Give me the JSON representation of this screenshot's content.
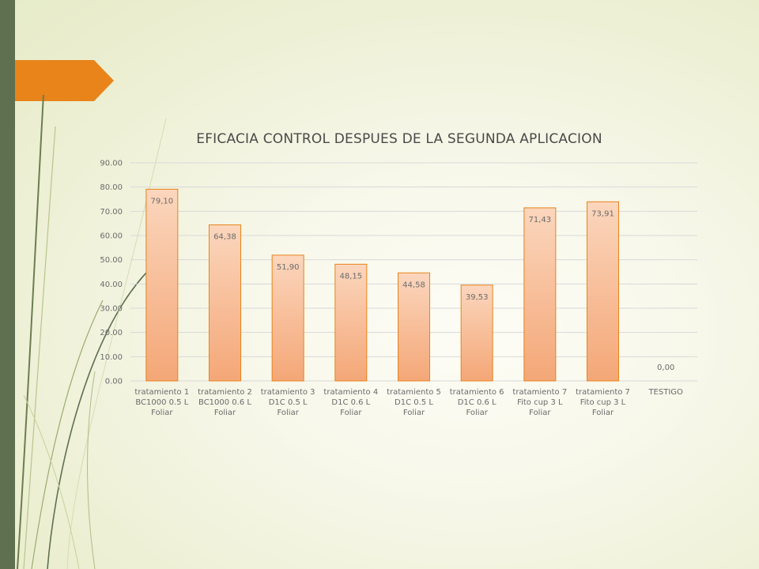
{
  "slide": {
    "accent_color": "#e8841a",
    "sidebar_color": "#5f7050"
  },
  "chart_data": {
    "type": "bar",
    "title": "EFICACIA CONTROL DESPUES DE LA SEGUNDA APLICACION",
    "xlabel": "",
    "ylabel": "",
    "ylim": [
      0,
      90
    ],
    "y_ticks": [
      "0.00",
      "10.00",
      "20.00",
      "30.00",
      "40.00",
      "50.00",
      "60.00",
      "70.00",
      "80.00",
      "90.00"
    ],
    "grid": true,
    "legend": "none",
    "bar_color": "#f4a777",
    "bar_edge_color": "#e8841a",
    "categories": [
      [
        "tratamiento 1",
        "BC1000 0.5 L",
        "Foliar"
      ],
      [
        "tratamiento 2",
        "BC1000 0.6 L",
        "Foliar"
      ],
      [
        "tratamiento 3",
        "D1C 0.5 L",
        "Foliar"
      ],
      [
        "tratamiento 4",
        "D1C 0.6 L",
        "Foliar"
      ],
      [
        "tratamiento 5",
        "D1C 0.5 L",
        "Foliar"
      ],
      [
        "tratamiento 6",
        "D1C 0.6 L",
        "Foliar"
      ],
      [
        "tratamiento 7",
        "Fito cup 3 L",
        "Foliar"
      ],
      [
        "tratamiento 7",
        "Fito cup 3 L",
        "Foliar"
      ],
      [
        "TESTIGO"
      ]
    ],
    "values": [
      79.1,
      64.38,
      51.9,
      48.15,
      44.58,
      39.53,
      71.43,
      73.91,
      0.0
    ],
    "value_labels": [
      "79,10",
      "64,38",
      "51,90",
      "48,15",
      "44,58",
      "39,53",
      "71,43",
      "73,91",
      "0,00"
    ]
  }
}
